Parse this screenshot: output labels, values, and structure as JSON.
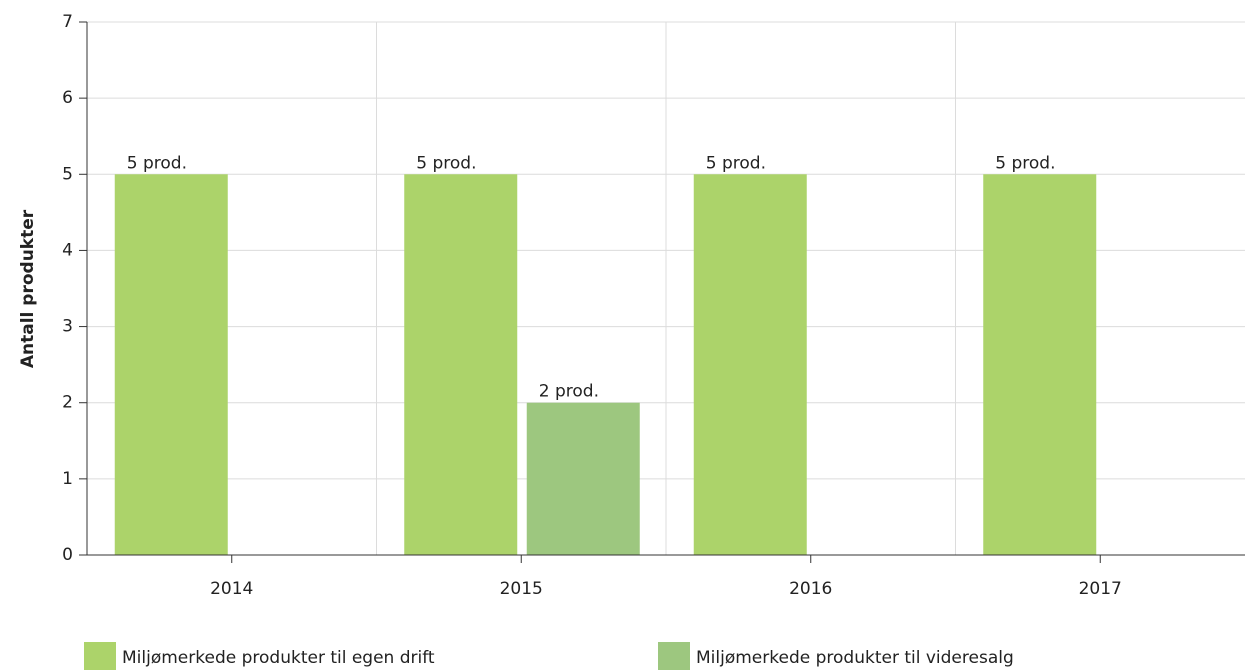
{
  "chart_data": {
    "type": "bar",
    "categories": [
      "2014",
      "2015",
      "2016",
      "2017"
    ],
    "y_label": "Antall produkter",
    "series": [
      {
        "name": "Miljømerkede produkter til egen drift",
        "color": "#acd36a",
        "values": [
          5,
          5,
          5,
          5
        ],
        "value_labels": [
          "5 prod.",
          "5 prod.",
          "5 prod.",
          "5 prod."
        ]
      },
      {
        "name": "Miljømerkede produkter til videresalg",
        "color": "#9dc77f",
        "values": [
          null,
          2,
          null,
          null
        ],
        "value_labels": [
          null,
          "2 prod.",
          null,
          null
        ]
      }
    ],
    "ylim": [
      0,
      7
    ],
    "yticks": [
      0,
      1,
      2,
      3,
      4,
      5,
      6,
      7
    ],
    "grid": true,
    "legend": "bottom"
  }
}
